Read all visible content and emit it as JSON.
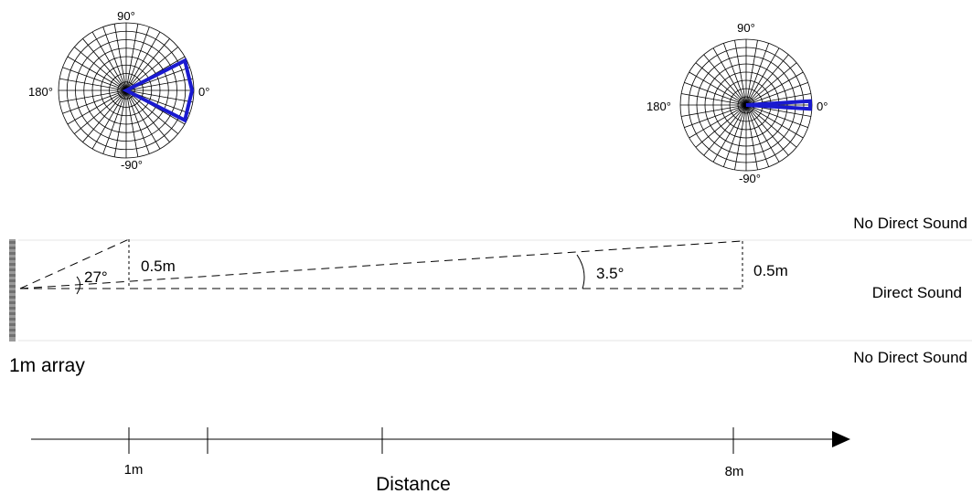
{
  "polar_near": {
    "label_top": "90°",
    "label_left": "180°",
    "label_right": "0°",
    "label_bottom": "-90°",
    "beam_half_angle_deg": 27
  },
  "polar_far": {
    "label_top": "90°",
    "label_left": "180°",
    "label_right": "0°",
    "label_bottom": "-90°",
    "beam_half_angle_deg": 3.5
  },
  "zones": {
    "top": "No Direct Sound",
    "middle": "Direct Sound",
    "bottom": "No Direct Sound"
  },
  "geometry": {
    "angle_near": "27°",
    "angle_far": "3.5°",
    "height_near": "0.5m",
    "height_far": "0.5m"
  },
  "array_label": "1m array",
  "axis": {
    "label": "Distance",
    "tick_1": "1m",
    "tick_8": "8m"
  },
  "colors": {
    "beam": "#1a1ad0",
    "grid": "#000000",
    "zone_line": "#e4e4e4"
  }
}
